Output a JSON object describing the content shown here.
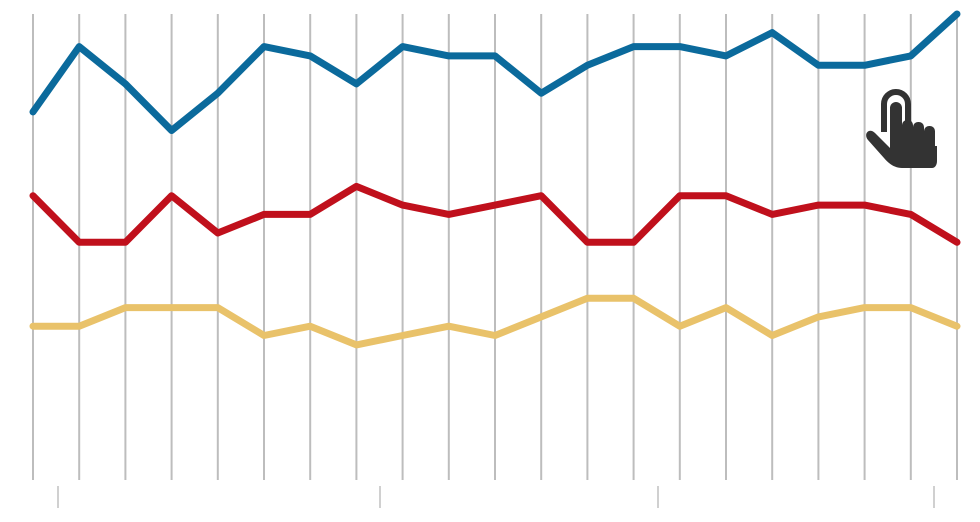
{
  "chart_data": {
    "type": "line",
    "title": "",
    "xlabel": "",
    "ylabel": "",
    "x": [
      0,
      1,
      2,
      3,
      4,
      5,
      6,
      7,
      8,
      9,
      10,
      11,
      12,
      13,
      14,
      15,
      16,
      17,
      18,
      19,
      20
    ],
    "ylim": [
      0,
      100
    ],
    "grid": "vertical",
    "legend": "none",
    "series": [
      {
        "color": "#0b6a9c",
        "values": [
          79,
          93,
          85,
          75,
          83,
          93,
          91,
          85,
          93,
          91,
          91,
          83,
          89,
          93,
          93,
          91,
          96,
          89,
          89,
          91,
          100
        ]
      },
      {
        "color": "#c0101c",
        "values": [
          61,
          51,
          51,
          61,
          53,
          57,
          57,
          63,
          59,
          57,
          59,
          61,
          51,
          51,
          61,
          61,
          57,
          59,
          59,
          57,
          51
        ]
      },
      {
        "color": "#e9c26a",
        "values": [
          33,
          33,
          37,
          37,
          37,
          31,
          33,
          29,
          31,
          33,
          31,
          35,
          39,
          39,
          33,
          37,
          31,
          35,
          37,
          37,
          33
        ]
      }
    ]
  },
  "overlay": {
    "icon": "hand-pointer-icon",
    "color": "#333333"
  }
}
